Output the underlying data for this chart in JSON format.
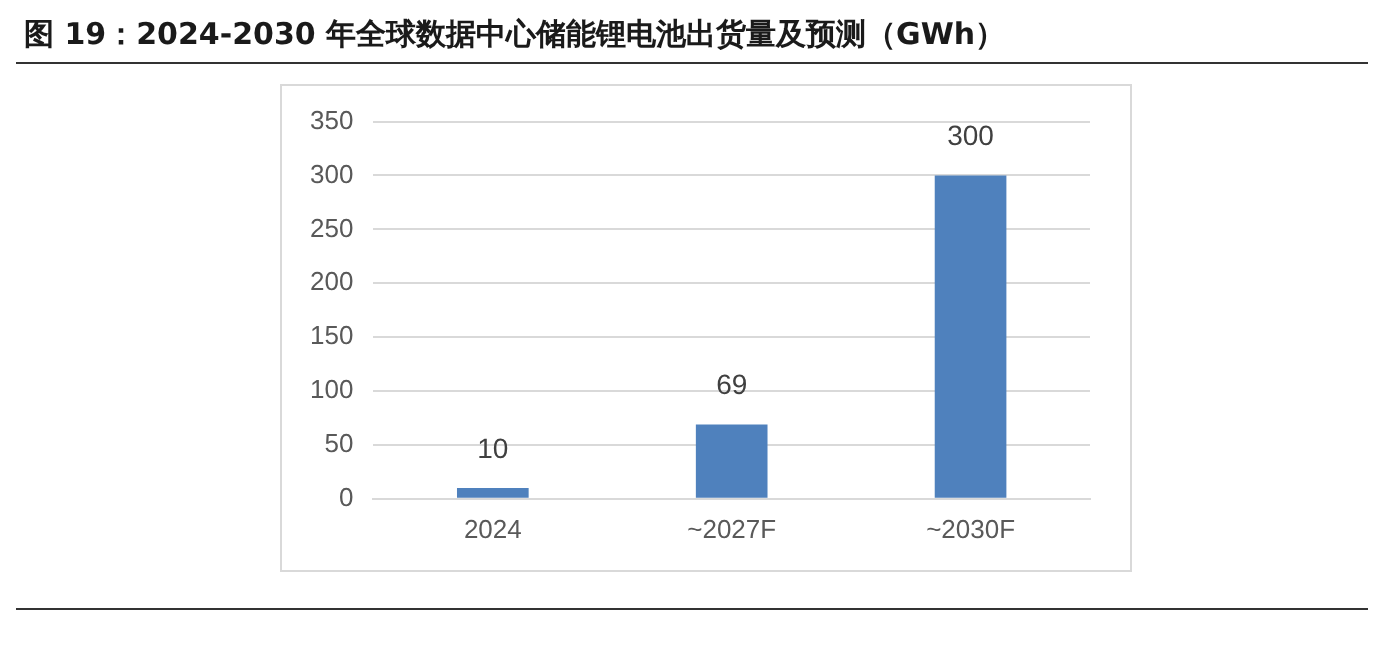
{
  "chart_data": {
    "type": "bar",
    "title": "图 19：2024-2030 年全球数据中心储能锂电池出货量及预测（GWh）",
    "categories": [
      "2024",
      "~2027F",
      "~2030F"
    ],
    "values": [
      10,
      69,
      300
    ],
    "color": "#4f81bd",
    "ylim": [
      0,
      350
    ],
    "yticks": [
      0,
      50,
      100,
      150,
      200,
      250,
      300,
      350
    ],
    "grid": "y",
    "legend": false,
    "data_labels": true
  }
}
